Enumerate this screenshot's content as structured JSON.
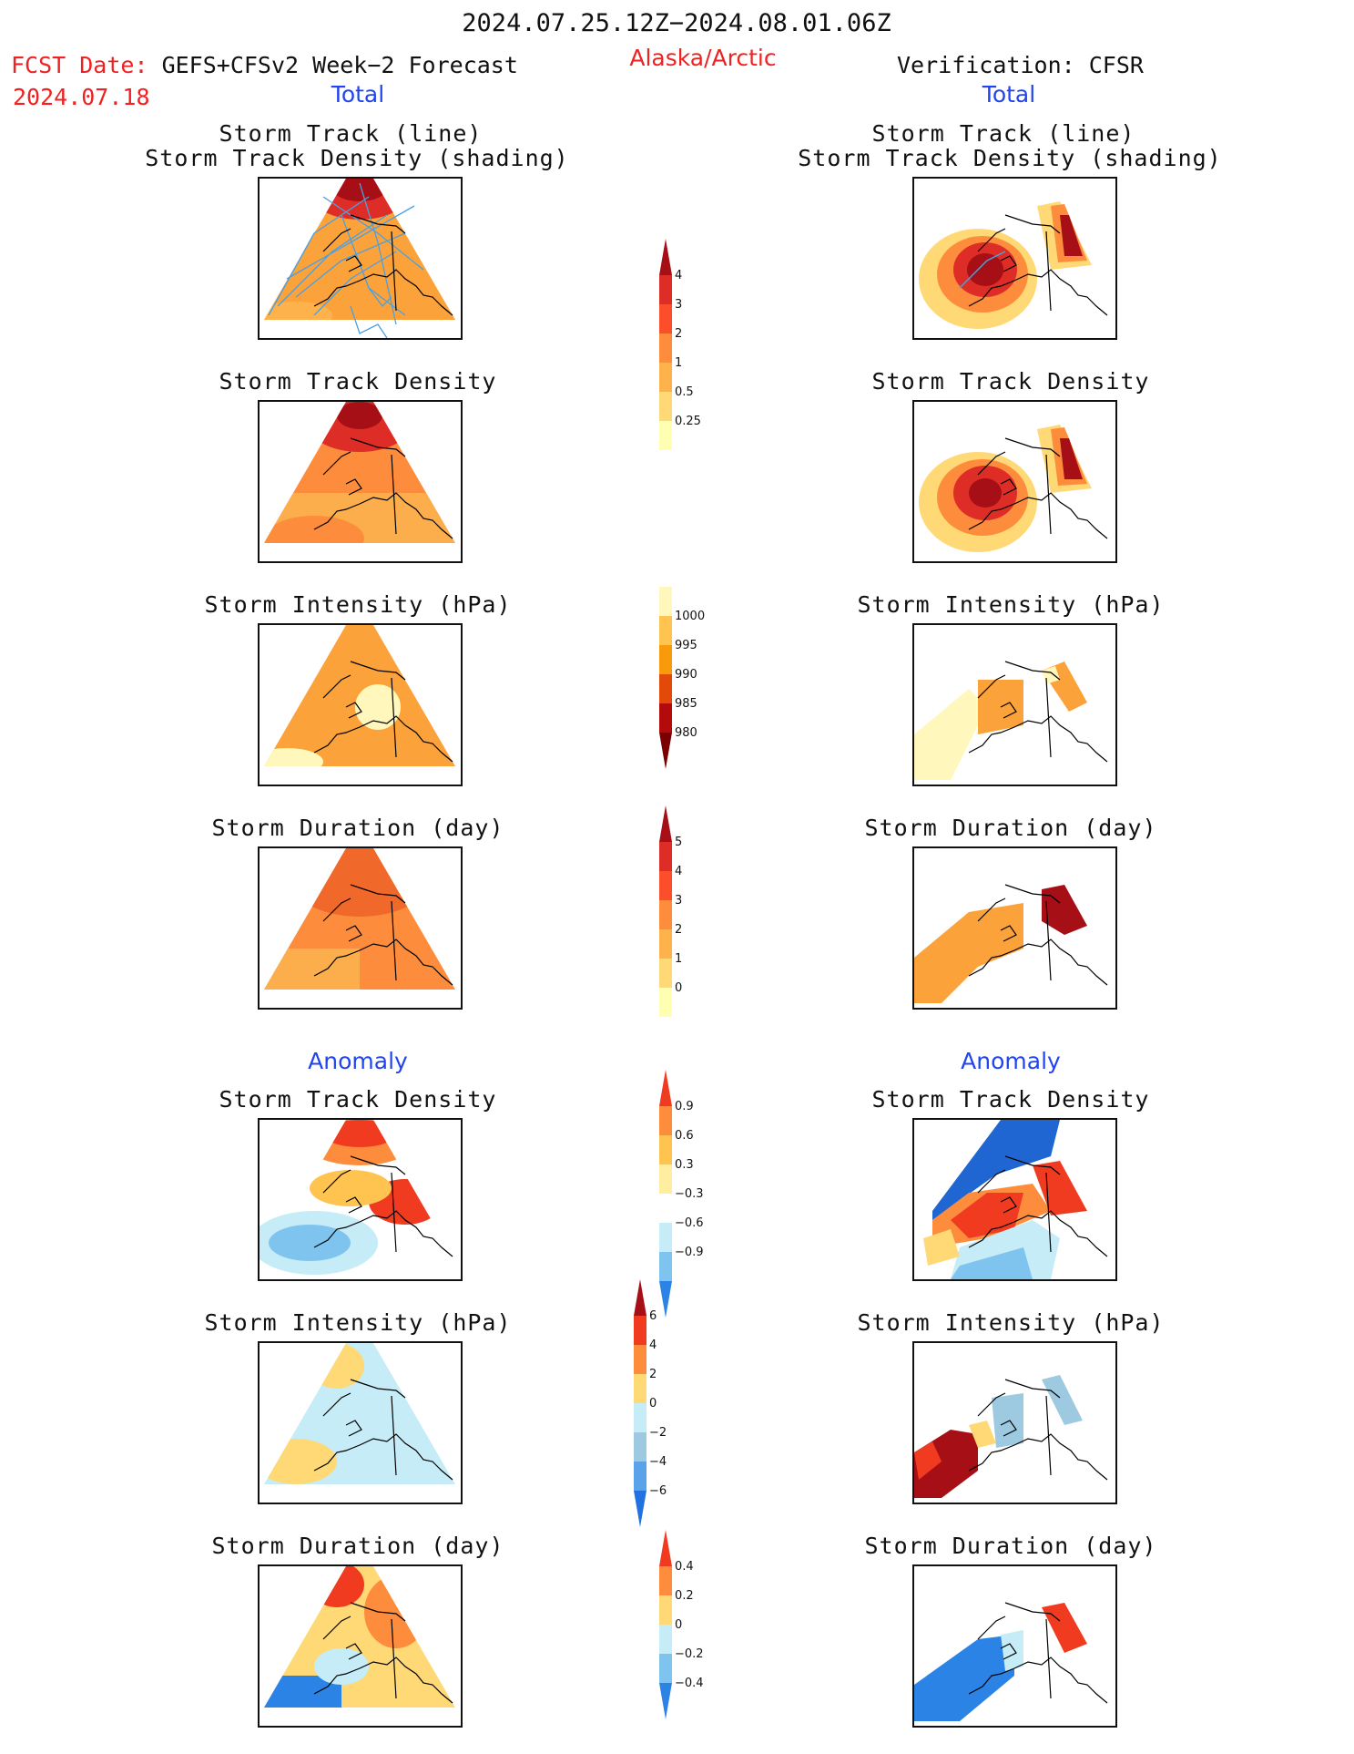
{
  "header": {
    "date_range": "2024.07.25.12Z−2024.08.01.06Z",
    "fcst_label": "FCST Date:",
    "fcst_model": "GEFS+CFSv2 Week−2 Forecast",
    "fcst_date": "2024.07.18",
    "region": "Alaska/Arctic",
    "verification": "Verification: CFSR"
  },
  "sections": {
    "total": "Total",
    "anomaly": "Anomaly"
  },
  "panel_titles": {
    "track_line": "Storm Track (line)",
    "track_shading": "Storm Track Density (shading)",
    "density": "Storm Track Density",
    "intensity": "Storm Intensity (hPa)",
    "duration": "Storm Duration (day)"
  },
  "colorbars": [
    {
      "name": "density-total",
      "labels": [
        "4",
        "3",
        "2",
        "1",
        "0.5",
        "0.25"
      ],
      "colors": [
        "#a50f15",
        "#de2d26",
        "#fc4e2a",
        "#fd8d3c",
        "#feb24c",
        "#fed976",
        "#ffffb2"
      ]
    },
    {
      "name": "intensity-total",
      "labels": [
        "1000",
        "995",
        "990",
        "985",
        "980"
      ],
      "colors": [
        "#fff7bc",
        "#fec44f",
        "#f99a0c",
        "#e34a0a",
        "#b30b0b",
        "#7a0000"
      ]
    },
    {
      "name": "duration-total",
      "labels": [
        "5",
        "4",
        "3",
        "2",
        "1",
        "0"
      ],
      "colors": [
        "#a50f15",
        "#de2d26",
        "#fc4e2a",
        "#fd8d3c",
        "#feb24c",
        "#fed976",
        "#ffffb2"
      ]
    },
    {
      "name": "density-anom",
      "labels": [
        "0.9",
        "0.6",
        "0.3",
        "−0.3",
        "−0.6",
        "−0.9"
      ],
      "colors": [
        "#f03b20",
        "#fd8d3c",
        "#fec44f",
        "#ffeda0",
        "#ffffff",
        "#c6ecf7",
        "#7fc4ee",
        "#2b83e6"
      ]
    },
    {
      "name": "intensity-anom",
      "labels": [
        "6",
        "4",
        "2",
        "0",
        "−2",
        "−4",
        "−6"
      ],
      "colors": [
        "#a50f15",
        "#f03b20",
        "#fd8d3c",
        "#fed976",
        "#c6ecf7",
        "#9ecae1",
        "#5aa3ea",
        "#2171e0"
      ]
    },
    {
      "name": "duration-anom",
      "labels": [
        "0.4",
        "0.2",
        "0",
        "−0.2",
        "−0.4"
      ],
      "colors": [
        "#f03b20",
        "#fd8d3c",
        "#fed976",
        "#c6ecf7",
        "#7fc4ee",
        "#2b83e6"
      ]
    }
  ]
}
